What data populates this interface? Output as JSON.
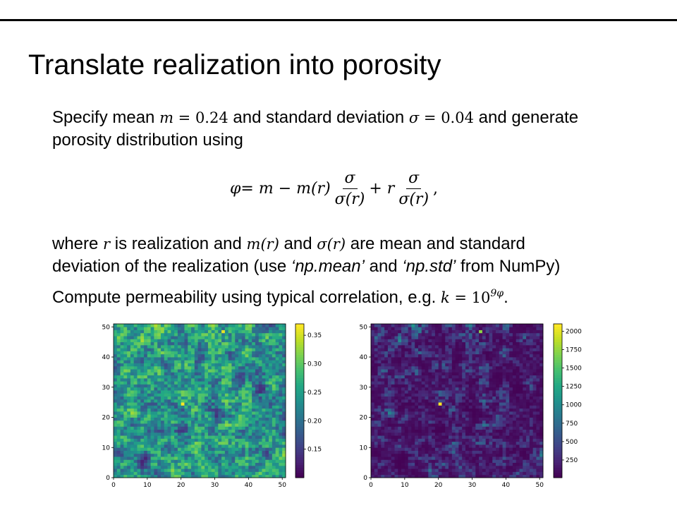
{
  "slide": {
    "title": "Translate realization into porosity",
    "p1": {
      "a": "Specify mean ",
      "m_sym": "m",
      "eq1": " = 0.24",
      "b": " and standard deviation ",
      "sigma_sym": "σ",
      "eq2": " = 0.04",
      "c": " and generate",
      "line2": "porosity distribution using"
    },
    "equation": {
      "lhs": "φ",
      "rhs1": " = m − m(r)",
      "num1": "σ",
      "den1": "σ(r)",
      "plus": " + r",
      "num2": "σ",
      "den2": "σ(r)",
      "comma": ","
    },
    "p2": {
      "a": "where ",
      "r": "r",
      "b": " is realization and ",
      "mr": "m(r)",
      "c": " and ",
      "sr": "σ(r)",
      "d": " are mean and standard",
      "e": "deviation of the realization (use ",
      "npmean": "‘np.mean’",
      "f": " and ",
      "npstd": "‘np.std’",
      "g": " from NumPy)"
    },
    "p3": {
      "a": "Compute permeability using typical correlation, e.g. ",
      "k": "k",
      "eq": " = 10",
      "exp": "9φ",
      "end": "."
    }
  },
  "chart_data": [
    {
      "type": "heatmap",
      "title": "",
      "xlabel": "",
      "ylabel": "",
      "xlim": [
        0,
        51
      ],
      "ylim": [
        0,
        51
      ],
      "x_ticks": [
        0,
        10,
        20,
        30,
        40,
        50
      ],
      "y_ticks": [
        0,
        10,
        20,
        30,
        40,
        50
      ],
      "colormap": "viridis",
      "colorbar": {
        "range": [
          0.1,
          0.37
        ],
        "ticks": [
          0.15,
          0.2,
          0.25,
          0.3,
          0.35
        ],
        "tick_labels": [
          "0.15",
          "0.20",
          "0.25",
          "0.30",
          "0.35"
        ]
      }
    },
    {
      "type": "heatmap",
      "title": "",
      "xlabel": "",
      "ylabel": "",
      "xlim": [
        0,
        51
      ],
      "ylim": [
        0,
        51
      ],
      "x_ticks": [
        0,
        10,
        20,
        30,
        40,
        50
      ],
      "y_ticks": [
        0,
        10,
        20,
        30,
        40,
        50
      ],
      "colormap": "viridis",
      "colorbar": {
        "range": [
          10,
          2100
        ],
        "ticks": [
          250,
          500,
          750,
          1000,
          1250,
          1500,
          1750,
          2000
        ],
        "tick_labels": [
          "250",
          "500",
          "750",
          "1000",
          "1250",
          "1500",
          "1750",
          "2000"
        ]
      }
    }
  ]
}
